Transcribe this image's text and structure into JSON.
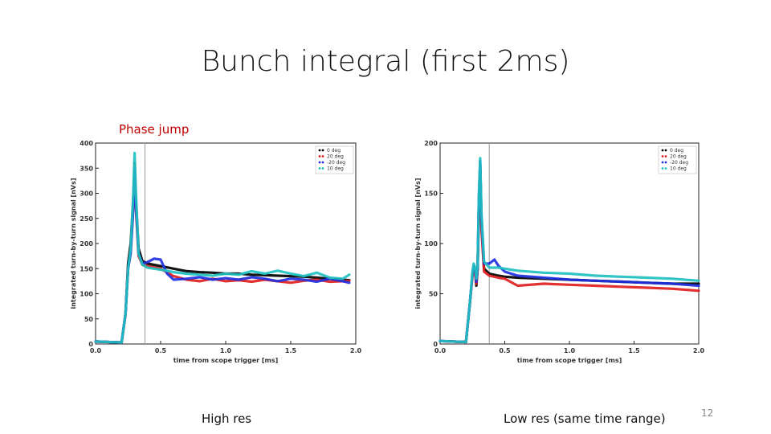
{
  "slide": {
    "title": "Bunch integral (first 2ms)",
    "phase_label": "Phase jump",
    "caption_left": "High res",
    "caption_right": "Low res (same time range)",
    "page_number": "12"
  },
  "chart_data": [
    {
      "type": "line",
      "xlabel": "time from scope trigger [ms]",
      "ylabel": "integrated turn-by-turn signal [nVs]",
      "xlim": [
        0.0,
        2.0
      ],
      "ylim": [
        0,
        400
      ],
      "xticks": [
        "0.0",
        "0.5",
        "1.0",
        "1.5",
        "2.0"
      ],
      "yticks": [
        "0",
        "50",
        "100",
        "150",
        "200",
        "250",
        "300",
        "350",
        "400"
      ],
      "vline_x": 0.38,
      "grid": false,
      "legend_position": "top-right",
      "series": [
        {
          "name": "0 deg",
          "color": "#000000",
          "x": [
            0,
            0.2,
            0.23,
            0.25,
            0.27,
            0.29,
            0.3,
            0.31,
            0.33,
            0.36,
            0.4,
            0.5,
            0.6,
            0.7,
            0.8,
            0.9,
            1.0,
            1.1,
            1.2,
            1.3,
            1.4,
            1.5,
            1.6,
            1.7,
            1.8,
            1.9,
            1.95
          ],
          "y": [
            5,
            3,
            60,
            160,
            200,
            290,
            360,
            290,
            190,
            165,
            160,
            155,
            150,
            145,
            143,
            142,
            140,
            140,
            138,
            137,
            136,
            135,
            134,
            132,
            130,
            128,
            127
          ]
        },
        {
          "name": "20 deg",
          "color": "#e02020",
          "x": [
            0,
            0.2,
            0.23,
            0.25,
            0.27,
            0.29,
            0.3,
            0.31,
            0.33,
            0.36,
            0.4,
            0.5,
            0.6,
            0.7,
            0.8,
            0.9,
            1.0,
            1.1,
            1.2,
            1.3,
            1.4,
            1.5,
            1.6,
            1.7,
            1.8,
            1.9,
            1.95
          ],
          "y": [
            5,
            3,
            60,
            150,
            185,
            280,
            355,
            270,
            175,
            158,
            155,
            150,
            135,
            128,
            125,
            130,
            125,
            127,
            124,
            128,
            125,
            122,
            126,
            128,
            124,
            125,
            126
          ]
        },
        {
          "name": "-20 deg",
          "color": "#2030e0",
          "x": [
            0,
            0.2,
            0.23,
            0.25,
            0.27,
            0.29,
            0.3,
            0.31,
            0.33,
            0.36,
            0.4,
            0.45,
            0.5,
            0.55,
            0.6,
            0.7,
            0.8,
            0.9,
            1.0,
            1.1,
            1.2,
            1.3,
            1.4,
            1.5,
            1.6,
            1.7,
            1.8,
            1.9,
            1.95
          ],
          "y": [
            5,
            3,
            60,
            150,
            180,
            270,
            350,
            280,
            180,
            160,
            163,
            170,
            168,
            140,
            128,
            130,
            133,
            128,
            131,
            128,
            133,
            130,
            125,
            130,
            128,
            124,
            130,
            125,
            122
          ]
        },
        {
          "name": "10 deg",
          "color": "#20c0c0",
          "x": [
            0,
            0.2,
            0.23,
            0.25,
            0.27,
            0.29,
            0.3,
            0.31,
            0.33,
            0.36,
            0.4,
            0.5,
            0.6,
            0.7,
            0.8,
            0.9,
            1.0,
            1.1,
            1.2,
            1.3,
            1.4,
            1.5,
            1.6,
            1.7,
            1.8,
            1.9,
            1.95
          ],
          "y": [
            5,
            3,
            60,
            150,
            190,
            300,
            380,
            300,
            180,
            158,
            152,
            148,
            143,
            140,
            138,
            136,
            140,
            138,
            145,
            140,
            146,
            140,
            135,
            142,
            132,
            130,
            138
          ]
        }
      ]
    },
    {
      "type": "line",
      "xlabel": "time from scope trigger [ms]",
      "ylabel": "integrated turn-by-turn signal [nVs]",
      "xlim": [
        0.0,
        2.0
      ],
      "ylim": [
        0,
        200
      ],
      "xticks": [
        "0.0",
        "0.5",
        "1.0",
        "1.5",
        "2.0"
      ],
      "yticks": [
        "0",
        "50",
        "100",
        "150",
        "200"
      ],
      "vline_x": 0.38,
      "grid": false,
      "legend_position": "top-right",
      "series": [
        {
          "name": "0 deg",
          "color": "#000000",
          "x": [
            0,
            0.2,
            0.23,
            0.25,
            0.26,
            0.27,
            0.28,
            0.29,
            0.3,
            0.31,
            0.32,
            0.34,
            0.38,
            0.45,
            0.5,
            0.6,
            0.8,
            1.0,
            1.2,
            1.4,
            1.6,
            1.8,
            2.0
          ],
          "y": [
            3,
            2,
            40,
            70,
            78,
            72,
            58,
            75,
            140,
            180,
            120,
            75,
            70,
            68,
            67,
            66,
            65,
            64,
            63,
            62,
            61,
            60,
            60
          ]
        },
        {
          "name": "20 deg",
          "color": "#e02020",
          "x": [
            0,
            0.2,
            0.23,
            0.25,
            0.26,
            0.27,
            0.28,
            0.29,
            0.3,
            0.31,
            0.32,
            0.34,
            0.38,
            0.45,
            0.5,
            0.6,
            0.8,
            1.0,
            1.2,
            1.4,
            1.6,
            1.8,
            2.0
          ],
          "y": [
            3,
            2,
            40,
            68,
            75,
            70,
            60,
            74,
            130,
            170,
            115,
            72,
            68,
            66,
            65,
            58,
            60,
            59,
            58,
            57,
            56,
            55,
            53
          ]
        },
        {
          "name": "-20 deg",
          "color": "#2030e0",
          "x": [
            0,
            0.2,
            0.23,
            0.25,
            0.26,
            0.27,
            0.28,
            0.29,
            0.3,
            0.31,
            0.32,
            0.34,
            0.38,
            0.42,
            0.45,
            0.5,
            0.6,
            0.8,
            1.0,
            1.2,
            1.4,
            1.6,
            1.8,
            2.0
          ],
          "y": [
            3,
            2,
            40,
            70,
            78,
            74,
            62,
            76,
            145,
            182,
            125,
            80,
            80,
            84,
            78,
            72,
            68,
            66,
            64,
            63,
            62,
            61,
            60,
            58
          ]
        },
        {
          "name": "10 deg",
          "color": "#20c0c0",
          "x": [
            0,
            0.2,
            0.23,
            0.25,
            0.26,
            0.27,
            0.28,
            0.29,
            0.3,
            0.31,
            0.32,
            0.34,
            0.38,
            0.45,
            0.5,
            0.6,
            0.8,
            1.0,
            1.2,
            1.4,
            1.6,
            1.8,
            2.0
          ],
          "y": [
            3,
            2,
            40,
            72,
            80,
            76,
            65,
            78,
            150,
            185,
            130,
            82,
            76,
            76,
            75,
            73,
            71,
            70,
            68,
            67,
            66,
            65,
            63
          ]
        }
      ]
    }
  ]
}
